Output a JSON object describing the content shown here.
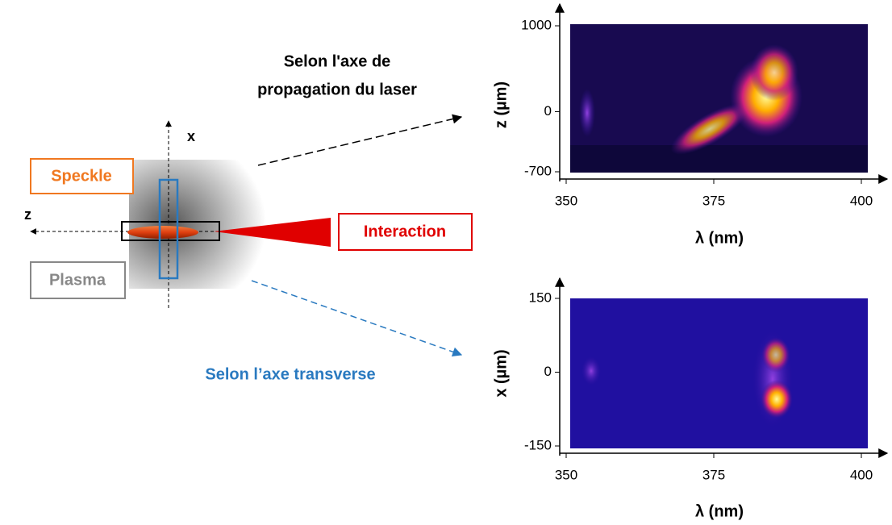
{
  "diagram": {
    "labels": {
      "speckle": "Speckle",
      "plasma": "Plasma",
      "interaction": "Interaction",
      "x_axis": "x",
      "z_axis": "z",
      "longitudinal": [
        "Selon l'axe de",
        "propagation du laser"
      ],
      "transverse": "Selon l’axe transverse"
    }
  },
  "plots": [
    {
      "xlabel": "λ (nm)",
      "ylabel": "z (µm)",
      "xlim": [
        350,
        400
      ],
      "xticks": [
        350,
        375,
        400
      ],
      "ylim": [
        -700,
        1000
      ],
      "yticks": [
        -700,
        0,
        1000
      ]
    },
    {
      "xlabel": "λ (nm)",
      "ylabel": "x (µm)",
      "xlim": [
        350,
        400
      ],
      "xticks": [
        350,
        375,
        400
      ],
      "ylim": [
        -150,
        150
      ],
      "yticks": [
        -150,
        0,
        150
      ]
    }
  ]
}
